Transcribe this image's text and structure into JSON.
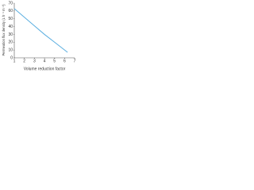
{
  "chart_data": {
    "type": "line",
    "x_label": "Volume reduction factor",
    "y_label": "Permeation flux density (L h⁻¹ m⁻²)",
    "x": [
      1,
      2,
      3,
      4,
      5,
      6,
      6.3
    ],
    "series": [
      {
        "color": "#5aaee0",
        "values": [
          63,
          52,
          41,
          30,
          20,
          10,
          7
        ]
      }
    ],
    "xlim": [
      1,
      7
    ],
    "xticks": [
      1,
      2,
      3,
      4,
      5,
      6,
      7
    ],
    "ylim": [
      0,
      70
    ],
    "yticks": [
      0,
      10,
      20,
      30,
      40,
      50,
      60,
      70
    ],
    "grid": false
  }
}
